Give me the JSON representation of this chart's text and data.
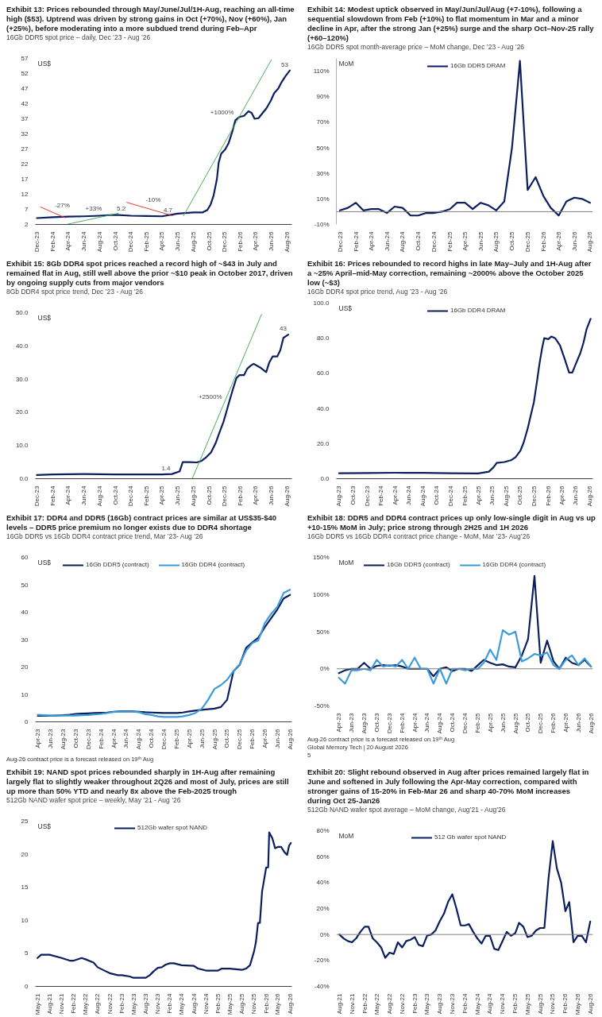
{
  "chart_data": [
    {
      "type": "line",
      "title": "Exhibit 13: Prices rebounded through May/June/Jul/1H-Aug, reaching an all-time high ($53). Uptrend was driven by strong gains in Oct (+70%), Nov (+60%), Jan (+25%), before moderating into a more subdued trend during Feb–Apr",
      "subtitle": "16Gb DDR5 spot price – daily, Dec ’23 - Aug ’26",
      "ylabel": "US$",
      "series": [
        {
          "color": "#0b1f5e",
          "x": [
            "2023-12-01",
            "2024-02-01",
            "2024-04-01",
            "2024-06-01",
            "2024-08-01",
            "2024-10-01",
            "2024-12-01",
            "2025-02-01",
            "2025-04-01",
            "2025-06-01",
            "2025-08-01",
            "2025-09-07",
            "2025-09-25",
            "2025-10-07",
            "2025-10-19",
            "2025-11-01",
            "2025-11-08",
            "2025-11-18",
            "2025-12-03",
            "2025-12-17",
            "2025-12-30",
            "2026-01-12",
            "2026-01-28",
            "2026-02-15",
            "2026-03-04",
            "2026-03-16",
            "2026-03-28",
            "2026-04-12",
            "2026-04-28",
            "2026-05-13",
            "2026-05-30",
            "2026-06-12",
            "2026-06-28",
            "2026-07-10",
            "2026-07-25",
            "2026-08-12"
          ],
          "values": [
            4.1,
            4.4,
            4.6,
            4.7,
            4.9,
            5.2,
            4.9,
            4.8,
            4.7,
            5.6,
            6.0,
            6.0,
            6.8,
            8.5,
            11.5,
            17,
            22.5,
            25.5,
            26.8,
            29,
            32.5,
            36.5,
            37.6,
            38,
            39.5,
            39,
            37,
            37.2,
            38.9,
            40.5,
            43,
            45.5,
            47,
            49,
            51,
            53
          ]
        },
        {
          "color": "#e23b2e",
          "x": [
            "2023-12-15",
            "2024-03-20"
          ],
          "values": [
            7.8,
            4.2
          ]
        },
        {
          "color": "#4cae5a",
          "x": [
            "2024-03-25",
            "2024-10-13"
          ],
          "values": [
            2.0,
            5.7
          ]
        },
        {
          "color": "#e23b2e",
          "x": [
            "2024-11-15",
            "2025-05-12"
          ],
          "values": [
            9.3,
            4.9
          ]
        },
        {
          "color": "#4cae5a",
          "x": [
            "2025-06-24",
            "2026-06-01"
          ],
          "values": [
            4.9,
            56.5
          ]
        }
      ],
      "xlim": [
        "2023-11-25",
        "2026-08-20"
      ],
      "xticks": [
        {
          "value": "2023-12",
          "label": "Dec-23"
        },
        {
          "value": "2024-02",
          "label": "Feb-24"
        },
        {
          "value": "2024-04",
          "label": "Apr-24"
        },
        {
          "value": "2024-06",
          "label": "Jun-24"
        },
        {
          "value": "2024-08",
          "label": "Aug-24"
        },
        {
          "value": "2024-10",
          "label": "Oct-24"
        },
        {
          "value": "2024-12",
          "label": "Dec-24"
        },
        {
          "value": "2025-02",
          "label": "Feb-25"
        },
        {
          "value": "2025-04",
          "label": "Apr-25"
        },
        {
          "value": "2025-06",
          "label": "Jun-25"
        },
        {
          "value": "2025-08",
          "label": "Aug-25"
        },
        {
          "value": "2025-10",
          "label": "Oct-25"
        },
        {
          "value": "2025-12",
          "label": "Dec-25"
        },
        {
          "value": "2026-02",
          "label": "Feb-26"
        },
        {
          "value": "2026-04",
          "label": "Apr-26"
        },
        {
          "value": "2026-06",
          "label": "Jun-26"
        },
        {
          "value": "2026-08",
          "label": "Aug-26"
        }
      ],
      "ylim": [
        2,
        57
      ],
      "yticks": [
        2,
        7,
        12,
        17,
        22,
        27,
        32,
        37,
        42,
        47,
        52,
        57
      ],
      "annotations": [
        {
          "text": "-27%",
          "x": "2024-02-03",
          "y": 5.9
        },
        {
          "text": "+33%",
          "x": "2024-06-01",
          "y": 4.7
        },
        {
          "text": "5.2",
          "x": "2024-10-01",
          "y": 5.2
        },
        {
          "text": "-10%",
          "x": "2025-01-22",
          "y": 7.6
        },
        {
          "text": "4.7",
          "x": "2025-04-01",
          "y": 4.7
        },
        {
          "text": "+1000%",
          "x": "2026-01-12",
          "y": 36.5
        },
        {
          "text": "53",
          "x": "2026-08-12",
          "y": 53
        }
      ]
    },
    {
      "type": "line",
      "title": "Exhibit 14: Modest uptick observed in May/Jun/Jul/Aug (+7-10%), following a sequential slowdown from Feb (+10%) to flat momentum in Mar and a minor decline in Apr, after the strong Jan (+25%) surge and the sharp Oct–Nov-25 rally (+60–120%)",
      "subtitle": "16Gb DDR5 spot month-average price – MoM change, Dec ’23 - Aug ’26",
      "ylabel": "MoM",
      "legend": "top",
      "x": [
        "2023-12",
        "2024-01",
        "2024-02",
        "2024-03",
        "2024-04",
        "2024-05",
        "2024-06",
        "2024-07",
        "2024-08",
        "2024-09",
        "2024-10",
        "2024-11",
        "2024-12",
        "2025-01",
        "2025-02",
        "2025-03",
        "2025-04",
        "2025-05",
        "2025-06",
        "2025-07",
        "2025-08",
        "2025-09",
        "2025-10",
        "2025-11",
        "2025-12",
        "2026-01",
        "2026-02",
        "2026-03",
        "2026-04",
        "2026-05",
        "2026-06",
        "2026-07",
        "2026-08"
      ],
      "series": [
        {
          "name": "16Gb DDR5 DRAM",
          "color": "#0b1f5e",
          "values": [
            1,
            3,
            7,
            1,
            2,
            2,
            -1,
            4,
            3,
            -3,
            -3,
            -1,
            -1,
            0,
            2,
            7,
            7,
            2,
            7,
            5,
            1,
            8,
            50,
            118,
            17,
            27,
            12,
            3,
            -3,
            8,
            11,
            10,
            7
          ]
        }
      ],
      "xlim": [
        "2023-11-17",
        "2026-08-12"
      ],
      "xticks": [
        {
          "value": "2023-12",
          "label": "Dec-23"
        },
        {
          "value": "2024-02",
          "label": "Feb-24"
        },
        {
          "value": "2024-04",
          "label": "Apr-24"
        },
        {
          "value": "2024-06",
          "label": "Jun-24"
        },
        {
          "value": "2024-08",
          "label": "Aug-24"
        },
        {
          "value": "2024-10",
          "label": "Oct-24"
        },
        {
          "value": "2024-12",
          "label": "Dec-24"
        },
        {
          "value": "2025-02",
          "label": "Feb-25"
        },
        {
          "value": "2025-04",
          "label": "Apr-25"
        },
        {
          "value": "2025-06",
          "label": "Jun-25"
        },
        {
          "value": "2025-08",
          "label": "Aug-25"
        },
        {
          "value": "2025-10",
          "label": "Oct-25"
        },
        {
          "value": "2025-12",
          "label": "Dec-25"
        },
        {
          "value": "2026-02",
          "label": "Feb-26"
        },
        {
          "value": "2026-04",
          "label": "Apr-26"
        },
        {
          "value": "2026-06",
          "label": "Jun-26"
        },
        {
          "value": "2026-08",
          "label": "Aug-26"
        }
      ],
      "ylim": [
        -10,
        120
      ],
      "yticks": [
        {
          "value": -10,
          "label": "-10%"
        },
        {
          "value": 10,
          "label": "10%"
        },
        {
          "value": 30,
          "label": "30%"
        },
        {
          "value": 50,
          "label": "50%"
        },
        {
          "value": 70,
          "label": "70%"
        },
        {
          "value": 90,
          "label": "90%"
        },
        {
          "value": 110,
          "label": "110%"
        }
      ],
      "ref_lines": [
        {
          "axis": "y",
          "value": 0,
          "color": "#808080"
        }
      ]
    },
    {
      "type": "line",
      "title": "Exhibit 15: 8Gb DDR4 spot prices reached a record high of ~$43 in July and remained flat in Aug, still well above the prior ~$10 peak in October 2017, driven by ongoing supply cuts from major vendors",
      "subtitle": "8Gb DDR4 spot price trend, Dec ’23 - Aug ’26",
      "ylabel": "US$",
      "series": [
        {
          "color": "#0b1f5e",
          "x": [
            "2023-12-01",
            "2024-02-01",
            "2024-06-01",
            "2024-10-01",
            "2025-02-01",
            "2025-04-01",
            "2025-05-10",
            "2025-06-09",
            "2025-06-21",
            "2025-07-15",
            "2025-08-15",
            "2025-09-03",
            "2025-09-21",
            "2025-10-09",
            "2025-10-27",
            "2025-11-09",
            "2025-11-27",
            "2025-12-09",
            "2025-12-21",
            "2026-01-03",
            "2026-01-16",
            "2026-01-28",
            "2026-02-15",
            "2026-02-27",
            "2026-03-12",
            "2026-03-24",
            "2026-04-18",
            "2026-05-12",
            "2026-05-24",
            "2026-06-06",
            "2026-06-24",
            "2026-07-06",
            "2026-07-18",
            "2026-08-06"
          ],
          "values": [
            1.1,
            1.3,
            1.4,
            1.3,
            1.3,
            1.3,
            1.4,
            2.2,
            5.0,
            5.0,
            4.9,
            5.4,
            6.5,
            7.9,
            10.7,
            13.5,
            17.2,
            20.4,
            23.7,
            27.1,
            30.3,
            31.2,
            31.2,
            33.1,
            34.0,
            34.6,
            33.5,
            32.1,
            35.0,
            36.8,
            36.8,
            38.7,
            42.4,
            43.4
          ]
        },
        {
          "color": "#4cae5a",
          "x": [
            "2025-07-28",
            "2026-04-24"
          ],
          "values": [
            0,
            49.5
          ]
        }
      ],
      "xlim": [
        "2023-11-25",
        "2026-08-20"
      ],
      "xticks": [
        {
          "value": "2023-12",
          "label": "Dec-23"
        },
        {
          "value": "2024-02",
          "label": "Feb-24"
        },
        {
          "value": "2024-04",
          "label": "Apr-24"
        },
        {
          "value": "2024-06",
          "label": "Jun-24"
        },
        {
          "value": "2024-08",
          "label": "Aug-24"
        },
        {
          "value": "2024-10",
          "label": "Oct-24"
        },
        {
          "value": "2024-12",
          "label": "Dec-24"
        },
        {
          "value": "2025-02",
          "label": "Feb-25"
        },
        {
          "value": "2025-04",
          "label": "Apr-25"
        },
        {
          "value": "2025-06",
          "label": "Jun-25"
        },
        {
          "value": "2025-08",
          "label": "Aug-25"
        },
        {
          "value": "2025-10",
          "label": "Oct-25"
        },
        {
          "value": "2025-12",
          "label": "Dec-25"
        },
        {
          "value": "2026-02",
          "label": "Feb-26"
        },
        {
          "value": "2026-04",
          "label": "Apr-26"
        },
        {
          "value": "2026-06",
          "label": "Jun-26"
        },
        {
          "value": "2026-08",
          "label": "Aug-26"
        }
      ],
      "ylim": [
        0,
        50
      ],
      "yticks": [
        {
          "value": 0,
          "label": "0.0"
        },
        {
          "value": 10,
          "label": "10.0"
        },
        {
          "value": 20,
          "label": "20.0"
        },
        {
          "value": 30,
          "label": "30.0"
        },
        {
          "value": 40,
          "label": "40.0"
        },
        {
          "value": 50,
          "label": "50.0"
        }
      ],
      "annotations": [
        {
          "text": "+2500%",
          "x": "2025-11-27",
          "y": 22.4
        },
        {
          "text": "43",
          "x": "2026-08-06",
          "y": 43.4
        },
        {
          "text": "1.4",
          "x": "2025-05-10",
          "y": 1.4
        }
      ]
    },
    {
      "type": "line",
      "title": "Exhibit 16: Prices rebounded to record highs in late May–July and 1H-Aug after a ~25% April–mid-May correction, remaining ~2000% above the October 2025 low (~$3)",
      "subtitle": "16Gb DDR4 spot price trend, Aug ’23 - Aug ’26",
      "ylabel": "US$",
      "legend": "top",
      "x": [
        "2023-08-01",
        "2023-12-01",
        "2024-04-01",
        "2024-08-01",
        "2024-12-01",
        "2025-04-01",
        "2025-05-18",
        "2025-06-07",
        "2025-06-21",
        "2025-07-25",
        "2025-08-22",
        "2025-09-12",
        "2025-10-03",
        "2025-10-17",
        "2025-11-03",
        "2025-11-17",
        "2025-12-01",
        "2025-12-15",
        "2025-12-25",
        "2026-01-06",
        "2026-01-15",
        "2026-02-02",
        "2026-02-15",
        "2026-03-04",
        "2026-03-25",
        "2026-04-15",
        "2026-05-04",
        "2026-05-18",
        "2026-06-01",
        "2026-06-22",
        "2026-07-06",
        "2026-07-19",
        "2026-08-06"
      ],
      "series": [
        {
          "name": "16Gb DDR4 DRAM",
          "color": "#0b1f5e",
          "values": [
            3.1,
            3.2,
            3.4,
            3.3,
            3.1,
            3.0,
            4.0,
            6.5,
            9.0,
            9.5,
            10.5,
            12.3,
            16,
            20.6,
            28.3,
            36,
            43.7,
            56,
            65.2,
            74.5,
            80,
            79.5,
            81,
            80,
            76,
            68,
            60.5,
            60.5,
            65,
            71.5,
            77.5,
            85,
            91
          ]
        }
      ],
      "xlim": [
        "2023-07-20",
        "2026-08-16"
      ],
      "xticks": [
        {
          "value": "2023-08",
          "label": "Aug-23"
        },
        {
          "value": "2023-10",
          "label": "Oct-23"
        },
        {
          "value": "2023-12",
          "label": "Dec-23"
        },
        {
          "value": "2024-02",
          "label": "Feb-24"
        },
        {
          "value": "2024-04",
          "label": "Apr-24"
        },
        {
          "value": "2024-06",
          "label": "Jun-24"
        },
        {
          "value": "2024-08",
          "label": "Aug-24"
        },
        {
          "value": "2024-10",
          "label": "Oct-24"
        },
        {
          "value": "2024-12",
          "label": "Dec-24"
        },
        {
          "value": "2025-02",
          "label": "Feb-25"
        },
        {
          "value": "2025-04",
          "label": "Apr-25"
        },
        {
          "value": "2025-06",
          "label": "Jun-25"
        },
        {
          "value": "2025-08",
          "label": "Aug-25"
        },
        {
          "value": "2025-10",
          "label": "Oct-25"
        },
        {
          "value": "2025-12",
          "label": "Dec-25"
        },
        {
          "value": "2026-02",
          "label": "Feb-26"
        },
        {
          "value": "2026-04",
          "label": "Apr-26"
        },
        {
          "value": "2026-06",
          "label": "Jun-26"
        },
        {
          "value": "2026-08",
          "label": "Aug-26"
        }
      ],
      "ylim": [
        0,
        100
      ],
      "yticks": [
        {
          "value": 0,
          "label": "0.0"
        },
        {
          "value": 20,
          "label": "20.0"
        },
        {
          "value": 40,
          "label": "40.0"
        },
        {
          "value": 60,
          "label": "60.0"
        },
        {
          "value": 80,
          "label": "80.0"
        },
        {
          "value": 100,
          "label": "100.0"
        }
      ]
    },
    {
      "type": "line",
      "title": "Exhibit 17: DDR4 and DDR5 (16Gb) contract prices are similar at US$35-$40 levels – DDR5 price premium no longer exists due to DDR4 shortage",
      "subtitle": "16Gb DDR5 vs 16Gb DDR4 contract price trend, Mar ’23- Aug ’26",
      "ylabel": "US$",
      "legend": "top",
      "x": [
        "2023-04",
        "2023-05",
        "2023-06",
        "2023-07",
        "2023-08",
        "2023-09",
        "2023-10",
        "2023-11",
        "2023-12",
        "2024-01",
        "2024-02",
        "2024-03",
        "2024-04",
        "2024-05",
        "2024-06",
        "2024-07",
        "2024-08",
        "2024-09",
        "2024-10",
        "2024-11",
        "2024-12",
        "2025-01",
        "2025-02",
        "2025-03",
        "2025-04",
        "2025-05",
        "2025-06",
        "2025-07",
        "2025-08",
        "2025-09",
        "2025-10",
        "2025-11",
        "2025-12",
        "2026-01",
        "2026-02",
        "2026-03",
        "2026-04",
        "2026-05",
        "2026-06",
        "2026-07",
        "2026-08"
      ],
      "series": [
        {
          "name": "16Gb DDR5 (contract)",
          "color": "#0b1f5e",
          "values": [
            2.2,
            2.2,
            2.2,
            2.3,
            2.4,
            2.6,
            2.9,
            3.0,
            3.1,
            3.2,
            3.3,
            3.4,
            3.7,
            3.8,
            3.8,
            3.8,
            3.7,
            3.5,
            3.4,
            3.3,
            3.2,
            3.2,
            3.2,
            3.4,
            3.8,
            4.1,
            4.4,
            4.6,
            4.8,
            5.4,
            8.0,
            18.5,
            20.8,
            27,
            29,
            30.7,
            34.5,
            37.7,
            41,
            45,
            46.3
          ]
        },
        {
          "name": "16Gb DDR4 (contract)",
          "color": "#3c9bd8",
          "values": [
            2.6,
            2.4,
            2.3,
            2.3,
            2.3,
            2.3,
            2.3,
            2.4,
            2.5,
            2.7,
            2.9,
            3.2,
            3.6,
            3.7,
            3.7,
            3.7,
            3.5,
            2.8,
            2.5,
            2.0,
            1.8,
            1.8,
            1.8,
            2.0,
            2.5,
            3.2,
            4.8,
            8.0,
            12.0,
            13.4,
            15.3,
            18.5,
            21,
            26,
            28.8,
            29.7,
            36,
            39.3,
            42,
            47,
            48.2
          ]
        }
      ],
      "xlim": [
        "2023-03-20",
        "2026-08-10"
      ],
      "xticks": [
        {
          "value": "2023-04",
          "label": "Apr-23"
        },
        {
          "value": "2023-06",
          "label": "Jun-23"
        },
        {
          "value": "2023-08",
          "label": "Aug-23"
        },
        {
          "value": "2023-10",
          "label": "Oct-23"
        },
        {
          "value": "2023-12",
          "label": "Dec-23"
        },
        {
          "value": "2024-02",
          "label": "Feb-24"
        },
        {
          "value": "2024-04",
          "label": "Apr-24"
        },
        {
          "value": "2024-06",
          "label": "Jun-24"
        },
        {
          "value": "2024-08",
          "label": "Aug-24"
        },
        {
          "value": "2024-10",
          "label": "Oct-24"
        },
        {
          "value": "2024-12",
          "label": "Dec-24"
        },
        {
          "value": "2025-02",
          "label": "Feb-25"
        },
        {
          "value": "2025-04",
          "label": "Apr-25"
        },
        {
          "value": "2025-06",
          "label": "Jun-25"
        },
        {
          "value": "2025-08",
          "label": "Aug-25"
        },
        {
          "value": "2025-10",
          "label": "Oct-25"
        },
        {
          "value": "2025-12",
          "label": "Dec-25"
        },
        {
          "value": "2026-02",
          "label": "Feb-26"
        },
        {
          "value": "2026-04",
          "label": "Apr-26"
        },
        {
          "value": "2026-06",
          "label": "Jun-26"
        },
        {
          "value": "2026-08",
          "label": "Aug-26"
        }
      ],
      "ylim": [
        0,
        60
      ],
      "yticks": [
        0,
        10,
        20,
        30,
        40,
        50,
        60
      ],
      "annotations": [
        "Aug-26 contract price is a forecast released on 19ᵗʰ Aug"
      ]
    },
    {
      "type": "line",
      "title": "Exhibit 18: DDR5 and DDR4 contract prices up only low-single digit in Aug vs up +10-15% MoM in July; price strong through 2H25 and 1H 2026",
      "subtitle": "16Gb DDR5 vs 16Gb DDR4 contract price change - MoM, Mar ’23- Aug’26",
      "ylabel": "MoM",
      "legend": "top",
      "x": [
        "2023-04",
        "2023-05",
        "2023-06",
        "2023-07",
        "2023-08",
        "2023-09",
        "2023-10",
        "2023-11",
        "2023-12",
        "2024-01",
        "2024-02",
        "2024-03",
        "2024-04",
        "2024-05",
        "2024-06",
        "2024-07",
        "2024-08",
        "2024-09",
        "2024-10",
        "2024-11",
        "2024-12",
        "2025-01",
        "2025-02",
        "2025-03",
        "2025-04",
        "2025-05",
        "2025-06",
        "2025-07",
        "2025-08",
        "2025-09",
        "2025-10",
        "2025-11",
        "2025-12",
        "2026-01",
        "2026-02",
        "2026-03",
        "2026-04",
        "2026-05",
        "2026-06",
        "2026-07",
        "2026-08"
      ],
      "series": [
        {
          "name": "16Gb DDR5 (contract)",
          "color": "#0b1f5e",
          "values": [
            -6,
            -2,
            0,
            0,
            8,
            0,
            4,
            5,
            4,
            5,
            3,
            0,
            0,
            0,
            0,
            -10,
            0,
            2,
            -3,
            0,
            0,
            -3,
            5,
            12,
            8,
            5,
            6,
            3,
            2,
            18,
            40,
            125,
            8,
            38,
            10,
            0,
            15,
            8,
            5,
            12,
            3
          ]
        },
        {
          "name": "16Gb DDR4 (contract)",
          "color": "#3c9bd8",
          "values": [
            -12,
            -20,
            -2,
            -2,
            0,
            -2,
            12,
            3,
            5,
            3,
            12,
            0,
            15,
            0,
            0,
            -20,
            0,
            -20,
            0,
            0,
            -2,
            0,
            0,
            8,
            26,
            12,
            52,
            46,
            50,
            10,
            14,
            20,
            18,
            22,
            5,
            0,
            12,
            18,
            5,
            14,
            3
          ]
        }
      ],
      "xlim": [
        "2023-03-20",
        "2026-08-10"
      ],
      "xticks": [
        {
          "value": "2023-04",
          "label": "Apr-23"
        },
        {
          "value": "2023-06",
          "label": "Jun-23"
        },
        {
          "value": "2023-08",
          "label": "Aug-23"
        },
        {
          "value": "2023-10",
          "label": "Oct-23"
        },
        {
          "value": "2023-12",
          "label": "Dec-23"
        },
        {
          "value": "2024-02",
          "label": "Feb-24"
        },
        {
          "value": "2024-04",
          "label": "Apr-24"
        },
        {
          "value": "2024-06",
          "label": "Jun-24"
        },
        {
          "value": "2024-08",
          "label": "Aug-24"
        },
        {
          "value": "2024-10",
          "label": "Oct-24"
        },
        {
          "value": "2024-12",
          "label": "Dec-24"
        },
        {
          "value": "2025-02",
          "label": "Feb-25"
        },
        {
          "value": "2025-04",
          "label": "Apr-25"
        },
        {
          "value": "2025-06",
          "label": "Jun-25"
        },
        {
          "value": "2025-08",
          "label": "Aug-25"
        },
        {
          "value": "2025-10",
          "label": "Oct-25"
        },
        {
          "value": "2025-12",
          "label": "Dec-25"
        },
        {
          "value": "2026-02",
          "label": "Feb-26"
        },
        {
          "value": "2026-04",
          "label": "Apr-26"
        },
        {
          "value": "2026-06",
          "label": "Jun-26"
        },
        {
          "value": "2026-08",
          "label": "Aug-26"
        }
      ],
      "ylim": [
        -50,
        150
      ],
      "yticks": [
        {
          "value": -50,
          "label": "-50%"
        },
        {
          "value": 0,
          "label": "0%"
        },
        {
          "value": 50,
          "label": "50%"
        },
        {
          "value": 100,
          "label": "100%"
        },
        {
          "value": 150,
          "label": "150%"
        }
      ],
      "ref_lines": [
        {
          "axis": "y",
          "value": 0,
          "color": "#808080"
        }
      ],
      "annotations": [
        "Aug-26 contract price is a forecast released on 19ᵗʰ Aug",
        "Global Memory Tech | 20 August 2026",
        "5"
      ]
    },
    {
      "type": "line",
      "title": "Exhibit 19: NAND spot prices rebounded sharply in 1H-Aug after remaining largely flat to slightly weaker throughout 2Q26 and most of July, prices are still up more than 50% YTD and nearly 8x above the Feb-2025 trough",
      "subtitle": "512Gb NAND wafer spot price – weekly, May ’21 - Aug ’26",
      "ylabel": "US$",
      "legend": "top",
      "x": [
        "2021-05-01",
        "2021-05-29",
        "2021-08-01",
        "2021-11-01",
        "2022-01-01",
        "2022-02-01",
        "2022-04-01",
        "2022-05-01",
        "2022-07-01",
        "2022-08-01",
        "2022-10-01",
        "2022-11-01",
        "2023-01-01",
        "2023-02-01",
        "2023-04-01",
        "2023-05-01",
        "2023-08-01",
        "2023-09-01",
        "2023-10-01",
        "2023-11-01",
        "2023-12-01",
        "2024-01-01",
        "2024-02-01",
        "2024-03-01",
        "2024-05-01",
        "2024-08-01",
        "2024-09-01",
        "2024-11-01",
        "2025-02-01",
        "2025-03-01",
        "2025-05-01",
        "2025-08-01",
        "2025-09-01",
        "2025-10-01",
        "2025-11-01",
        "2025-11-15",
        "2025-12-01",
        "2025-12-15",
        "2026-01-01",
        "2026-01-15",
        "2026-02-01",
        "2026-02-16",
        "2026-02-24",
        "2026-03-20",
        "2026-04-10",
        "2026-05-01",
        "2026-05-25",
        "2026-06-20",
        "2026-07-10",
        "2026-07-25",
        "2026-08-08"
      ],
      "series": [
        {
          "name": "512Gb wafer spot NAND",
          "color": "#0b1f5e",
          "values": [
            4.3,
            4.8,
            4.8,
            4.3,
            3.9,
            3.9,
            4.3,
            4.1,
            3.6,
            2.9,
            2.3,
            2.0,
            1.7,
            1.7,
            1.5,
            1.3,
            1.3,
            1.7,
            2.3,
            2.8,
            2.9,
            3.3,
            3.5,
            3.5,
            3.2,
            3.1,
            2.7,
            2.4,
            2.4,
            2.7,
            2.7,
            2.5,
            2.7,
            3.2,
            5.3,
            6.7,
            9.6,
            9.6,
            14.4,
            16,
            18,
            18,
            23.3,
            22.4,
            20.9,
            21.1,
            21.1,
            20.3,
            19.9,
            21.3,
            21.7
          ]
        }
      ],
      "xlim": [
        "2021-04-15",
        "2026-08-15"
      ],
      "xticks": [
        {
          "value": "2021-05",
          "label": "May-21"
        },
        {
          "value": "2021-08",
          "label": "Aug-21"
        },
        {
          "value": "2021-11",
          "label": "Nov-21"
        },
        {
          "value": "2022-02",
          "label": "Feb-22"
        },
        {
          "value": "2022-05",
          "label": "May-22"
        },
        {
          "value": "2022-08",
          "label": "Aug-22"
        },
        {
          "value": "2022-11",
          "label": "Nov-22"
        },
        {
          "value": "2023-02",
          "label": "Feb-23"
        },
        {
          "value": "2023-05",
          "label": "May-23"
        },
        {
          "value": "2023-08",
          "label": "Aug-23"
        },
        {
          "value": "2023-11",
          "label": "Nov-23"
        },
        {
          "value": "2024-02",
          "label": "Feb-24"
        },
        {
          "value": "2024-05",
          "label": "May-24"
        },
        {
          "value": "2024-08",
          "label": "Aug-24"
        },
        {
          "value": "2024-11",
          "label": "Nov-24"
        },
        {
          "value": "2025-02",
          "label": "Feb-25"
        },
        {
          "value": "2025-05",
          "label": "May-25"
        },
        {
          "value": "2025-08",
          "label": "Aug-25"
        },
        {
          "value": "2025-11",
          "label": "Nov-25"
        },
        {
          "value": "2026-02",
          "label": "Feb-26"
        },
        {
          "value": "2026-05",
          "label": "May-26"
        },
        {
          "value": "2026-08",
          "label": "Aug-26"
        }
      ],
      "ylim": [
        0,
        25
      ],
      "yticks": [
        0,
        5,
        10,
        15,
        20,
        25
      ]
    },
    {
      "type": "line",
      "title": "Exhibit 20: Slight rebound observed in Aug after prices remained largely flat in June and softened in July following the Apr-May correction, compared with stronger gains of 15-20% in Feb-Mar 26 and sharp 40-70% MoM increases during Oct 25-Jan26",
      "subtitle": "512Gb NAND wafer spot average – MoM change, Aug’21 - Aug’26",
      "ylabel": "MoM",
      "legend": "top",
      "x": [
        "2021-08",
        "2021-09",
        "2021-10",
        "2021-11",
        "2021-12",
        "2022-01",
        "2022-02",
        "2022-03",
        "2022-04",
        "2022-05",
        "2022-06",
        "2022-07",
        "2022-08",
        "2022-09",
        "2022-10",
        "2022-11",
        "2022-12",
        "2023-01",
        "2023-02",
        "2023-03",
        "2023-04",
        "2023-05",
        "2023-06",
        "2023-07",
        "2023-08",
        "2023-09",
        "2023-10",
        "2023-11",
        "2023-12",
        "2024-01",
        "2024-02",
        "2024-03",
        "2024-04",
        "2024-05",
        "2024-06",
        "2024-07",
        "2024-08",
        "2024-09",
        "2024-10",
        "2024-11",
        "2024-12",
        "2025-01",
        "2025-02",
        "2025-03",
        "2025-04",
        "2025-05",
        "2025-06",
        "2025-07",
        "2025-08",
        "2025-09",
        "2025-10",
        "2025-11",
        "2025-12",
        "2026-01",
        "2026-02",
        "2026-03",
        "2026-04",
        "2026-05",
        "2026-06",
        "2026-07",
        "2026-08"
      ],
      "series": [
        {
          "name": "512 Gb wafer spot NAND",
          "color": "#0b1f5e",
          "values": [
            0,
            -3,
            -5,
            -6,
            -3,
            2,
            6,
            6,
            -3,
            -6,
            -10,
            -18,
            -14,
            -15,
            -6,
            -10,
            -5,
            -4,
            -2,
            -8,
            -9,
            -1,
            0,
            3,
            10,
            16,
            25,
            31,
            20,
            7,
            7,
            8,
            2,
            -3,
            -7,
            -1,
            -1,
            -11,
            -12,
            -5,
            2,
            -1,
            1,
            9,
            6,
            -2,
            -1,
            3,
            5,
            5,
            43,
            72,
            51,
            40,
            18,
            25,
            -6,
            -1,
            -1,
            -6,
            10
          ]
        }
      ],
      "xlim": [
        "2021-07-10",
        "2026-08-20"
      ],
      "xticks": [
        {
          "value": "2021-08",
          "label": "Aug-21"
        },
        {
          "value": "2021-11",
          "label": "Nov-21"
        },
        {
          "value": "2022-02",
          "label": "Feb-22"
        },
        {
          "value": "2022-05",
          "label": "May-22"
        },
        {
          "value": "2022-08",
          "label": "Aug-22"
        },
        {
          "value": "2022-11",
          "label": "Nov-22"
        },
        {
          "value": "2023-02",
          "label": "Feb-23"
        },
        {
          "value": "2023-05",
          "label": "May-23"
        },
        {
          "value": "2023-08",
          "label": "Aug-23"
        },
        {
          "value": "2023-11",
          "label": "Nov-23"
        },
        {
          "value": "2024-02",
          "label": "Feb-24"
        },
        {
          "value": "2024-05",
          "label": "May-24"
        },
        {
          "value": "2024-08",
          "label": "Aug-24"
        },
        {
          "value": "2024-11",
          "label": "Nov-24"
        },
        {
          "value": "2025-02",
          "label": "Feb-25"
        },
        {
          "value": "2025-05",
          "label": "May-25"
        },
        {
          "value": "2025-08",
          "label": "Aug-25"
        },
        {
          "value": "2025-11",
          "label": "Nov-25"
        },
        {
          "value": "2026-02",
          "label": "Feb-26"
        },
        {
          "value": "2026-05",
          "label": "May-26"
        },
        {
          "value": "2026-08",
          "label": "Aug-26"
        }
      ],
      "ylim": [
        -40,
        80
      ],
      "yticks": [
        {
          "value": -40,
          "label": "-40%"
        },
        {
          "value": -20,
          "label": "-20%"
        },
        {
          "value": 0,
          "label": "0%"
        },
        {
          "value": 20,
          "label": "20%"
        },
        {
          "value": 40,
          "label": "40%"
        },
        {
          "value": 60,
          "label": "60%"
        },
        {
          "value": 80,
          "label": "80%"
        }
      ],
      "ref_lines": [
        {
          "axis": "y",
          "value": 0,
          "color": "#808080"
        }
      ]
    }
  ]
}
